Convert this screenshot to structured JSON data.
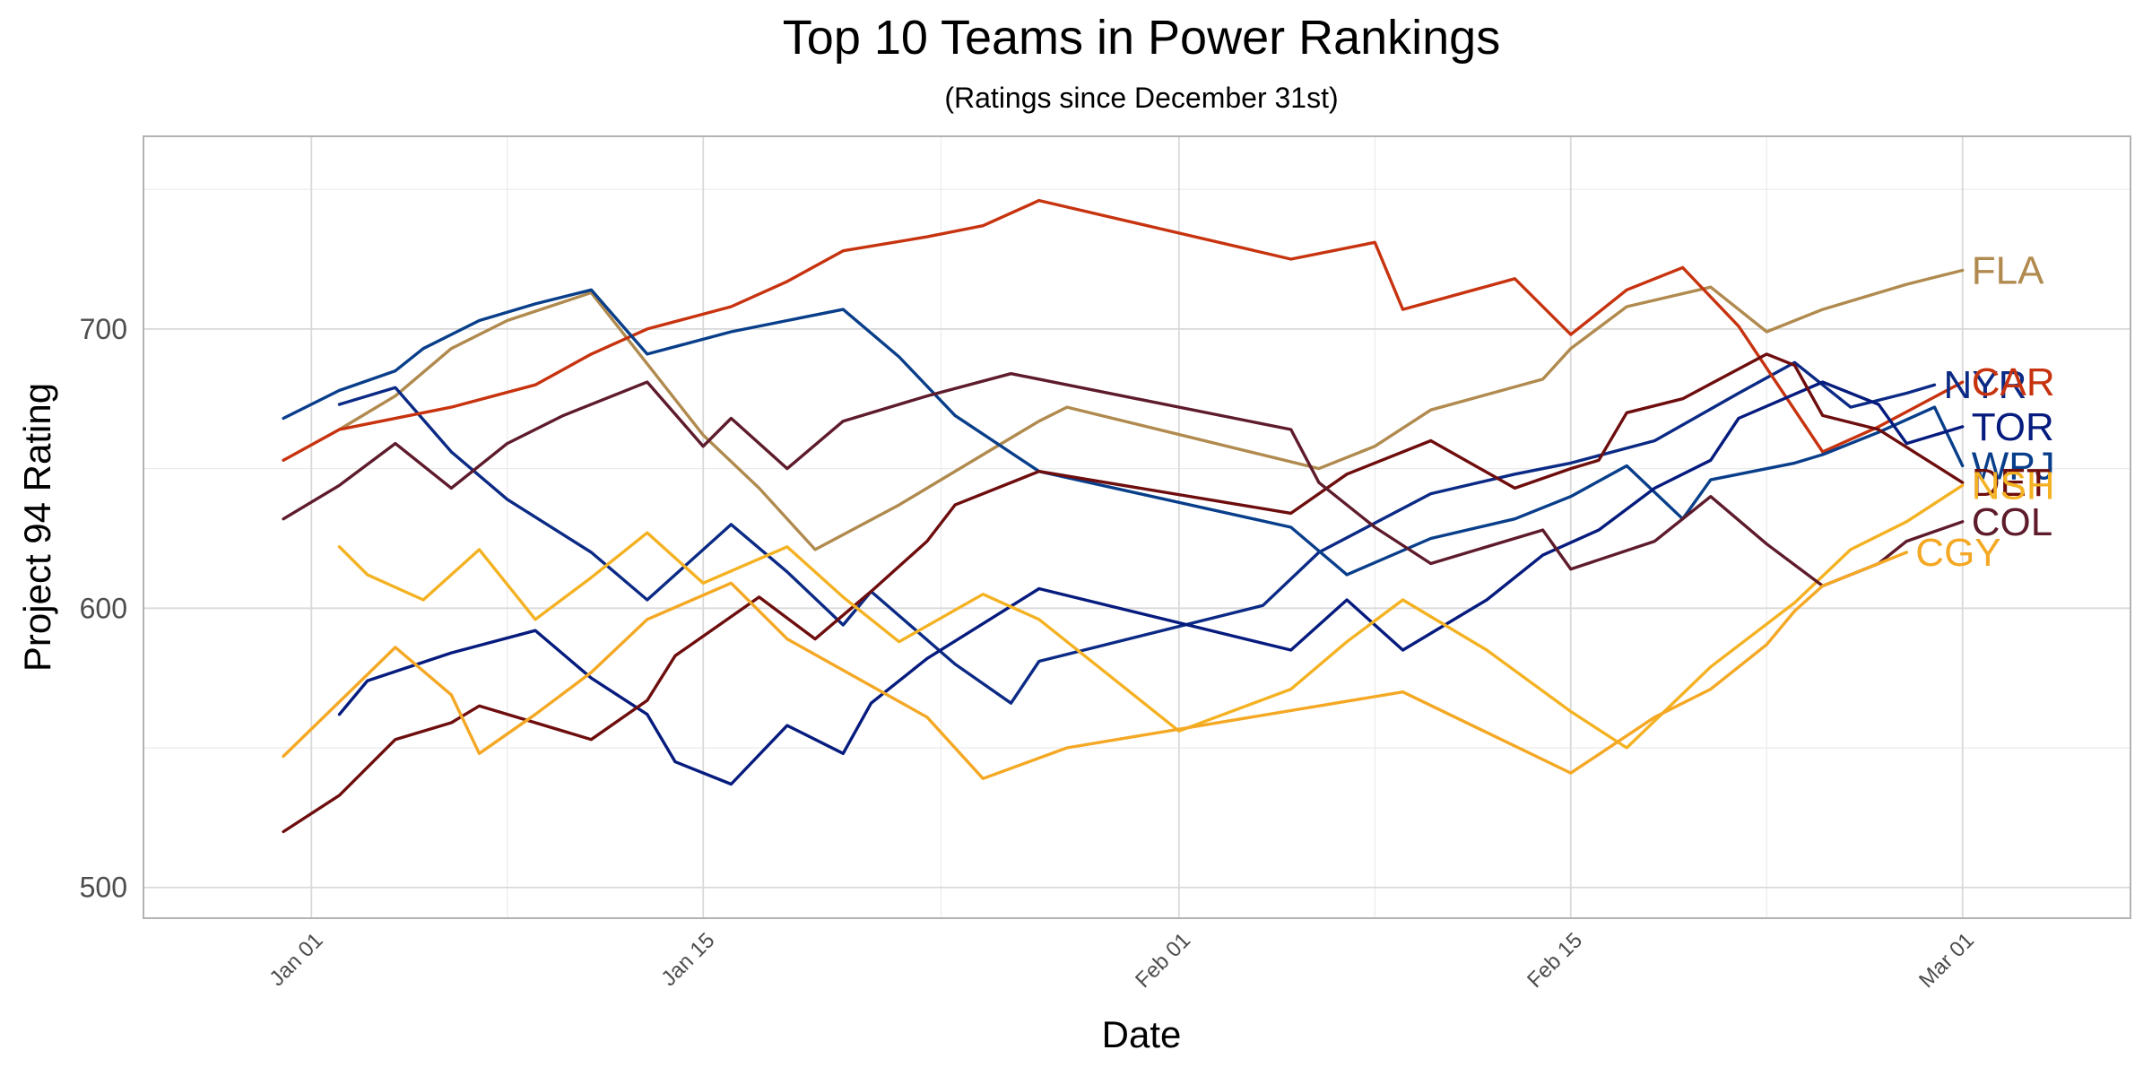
{
  "chart_data": {
    "type": "line",
    "title": "Top 10 Teams in Power Rankings",
    "subtitle": "(Ratings since December 31st)",
    "xlabel": "Date",
    "ylabel": "Project 94 Rating",
    "xlim": [
      "2021-12-26",
      "2022-03-07"
    ],
    "ylim": [
      489,
      769
    ],
    "x_tick_labels": [
      {
        "date": "2022-01-01",
        "label": "Jan 01"
      },
      {
        "date": "2022-01-15",
        "label": "Jan 15"
      },
      {
        "date": "2022-02-01",
        "label": "Feb 01"
      },
      {
        "date": "2022-02-15",
        "label": "Feb 15"
      },
      {
        "date": "2022-03-01",
        "label": "Mar 01"
      }
    ],
    "y_ticks": [
      500,
      600,
      700
    ],
    "grid": true,
    "legend": "direct labels at line ends",
    "series": [
      {
        "name": "FLA",
        "color": "#B08A4E",
        "points": [
          [
            "2022-01-02",
            664
          ],
          [
            "2022-01-04",
            676
          ],
          [
            "2022-01-06",
            693
          ],
          [
            "2022-01-08",
            703
          ],
          [
            "2022-01-11",
            713
          ],
          [
            "2022-01-15",
            662
          ],
          [
            "2022-01-17",
            643
          ],
          [
            "2022-01-19",
            621
          ],
          [
            "2022-01-22",
            637
          ],
          [
            "2022-01-25",
            655
          ],
          [
            "2022-01-27",
            667
          ],
          [
            "2022-01-28",
            672
          ],
          [
            "2022-02-06",
            650
          ],
          [
            "2022-02-08",
            658
          ],
          [
            "2022-02-10",
            671
          ],
          [
            "2022-02-14",
            682
          ],
          [
            "2022-02-15",
            693
          ],
          [
            "2022-02-17",
            708
          ],
          [
            "2022-02-20",
            715
          ],
          [
            "2022-02-22",
            699
          ],
          [
            "2022-02-24",
            707
          ],
          [
            "2022-02-27",
            716
          ],
          [
            "2022-02-29",
            721
          ]
        ]
      },
      {
        "name": "NYR",
        "color": "#0B2A85",
        "points": [
          [
            "2022-01-02",
            673
          ],
          [
            "2022-01-04",
            679
          ],
          [
            "2022-01-06",
            656
          ],
          [
            "2022-01-08",
            639
          ],
          [
            "2022-01-11",
            620
          ],
          [
            "2022-01-13",
            603
          ],
          [
            "2022-01-16",
            630
          ],
          [
            "2022-01-18",
            613
          ],
          [
            "2022-01-20",
            594
          ],
          [
            "2022-01-21",
            606
          ],
          [
            "2022-01-24",
            580
          ],
          [
            "2022-01-26",
            566
          ],
          [
            "2022-01-27",
            581
          ],
          [
            "2022-02-04",
            601
          ],
          [
            "2022-02-06",
            620
          ],
          [
            "2022-02-10",
            641
          ],
          [
            "2022-02-13",
            648
          ],
          [
            "2022-02-15",
            652
          ],
          [
            "2022-02-18",
            660
          ],
          [
            "2022-02-21",
            677
          ],
          [
            "2022-02-23",
            688
          ],
          [
            "2022-02-25",
            672
          ],
          [
            "2022-02-27",
            677
          ],
          [
            "2022-02-28",
            680
          ]
        ]
      },
      {
        "name": "CAR",
        "color": "#C7330F",
        "points": [
          [
            "2021-12-31",
            653
          ],
          [
            "2022-01-02",
            664
          ],
          [
            "2022-01-06",
            672
          ],
          [
            "2022-01-09",
            680
          ],
          [
            "2022-01-11",
            691
          ],
          [
            "2022-01-13",
            700
          ],
          [
            "2022-01-16",
            708
          ],
          [
            "2022-01-18",
            717
          ],
          [
            "2022-01-20",
            728
          ],
          [
            "2022-01-23",
            733
          ],
          [
            "2022-01-25",
            737
          ],
          [
            "2022-01-27",
            746
          ],
          [
            "2022-02-05",
            725
          ],
          [
            "2022-02-08",
            731
          ],
          [
            "2022-02-09",
            707
          ],
          [
            "2022-02-13",
            718
          ],
          [
            "2022-02-15",
            698
          ],
          [
            "2022-02-17",
            714
          ],
          [
            "2022-02-19",
            722
          ],
          [
            "2022-02-21",
            701
          ],
          [
            "2022-02-24",
            656
          ],
          [
            "2022-02-26",
            665
          ],
          [
            "2022-02-29",
            681
          ]
        ]
      },
      {
        "name": "WPJ",
        "color": "#083E8A",
        "points": [
          [
            "2021-12-31",
            668
          ],
          [
            "2022-01-02",
            678
          ],
          [
            "2022-01-04",
            685
          ],
          [
            "2022-01-05",
            693
          ],
          [
            "2022-01-07",
            703
          ],
          [
            "2022-01-09",
            709
          ],
          [
            "2022-01-11",
            714
          ],
          [
            "2022-01-13",
            691
          ],
          [
            "2022-01-16",
            699
          ],
          [
            "2022-01-18",
            703
          ],
          [
            "2022-01-20",
            707
          ],
          [
            "2022-01-22",
            690
          ],
          [
            "2022-01-24",
            669
          ],
          [
            "2022-01-27",
            649
          ],
          [
            "2022-02-05",
            629
          ],
          [
            "2022-02-07",
            612
          ],
          [
            "2022-02-10",
            625
          ],
          [
            "2022-02-13",
            632
          ],
          [
            "2022-02-15",
            640
          ],
          [
            "2022-02-17",
            651
          ],
          [
            "2022-02-19",
            632
          ],
          [
            "2022-02-20",
            646
          ],
          [
            "2022-02-23",
            652
          ],
          [
            "2022-02-24",
            655
          ],
          [
            "2022-02-26",
            663
          ],
          [
            "2022-02-28",
            672
          ],
          [
            "2022-02-29",
            651
          ]
        ]
      },
      {
        "name": "TOR",
        "color": "#061B7E",
        "points": [
          [
            "2022-01-02",
            562
          ],
          [
            "2022-01-03",
            574
          ],
          [
            "2022-01-06",
            584
          ],
          [
            "2022-01-09",
            592
          ],
          [
            "2022-01-11",
            575
          ],
          [
            "2022-01-13",
            562
          ],
          [
            "2022-01-14",
            545
          ],
          [
            "2022-01-16",
            537
          ],
          [
            "2022-01-18",
            558
          ],
          [
            "2022-01-20",
            548
          ],
          [
            "2022-01-21",
            566
          ],
          [
            "2022-01-23",
            582
          ],
          [
            "2022-01-27",
            607
          ],
          [
            "2022-02-05",
            585
          ],
          [
            "2022-02-07",
            603
          ],
          [
            "2022-02-09",
            585
          ],
          [
            "2022-02-12",
            603
          ],
          [
            "2022-02-14",
            619
          ],
          [
            "2022-02-16",
            628
          ],
          [
            "2022-02-18",
            643
          ],
          [
            "2022-02-20",
            653
          ],
          [
            "2022-02-21",
            668
          ],
          [
            "2022-02-24",
            681
          ],
          [
            "2022-02-26",
            673
          ],
          [
            "2022-02-27",
            659
          ],
          [
            "2022-02-29",
            665
          ]
        ]
      },
      {
        "name": "DET",
        "color": "#6E0D0D",
        "points": [
          [
            "2021-12-31",
            520
          ],
          [
            "2022-01-02",
            533
          ],
          [
            "2022-01-04",
            553
          ],
          [
            "2022-01-06",
            559
          ],
          [
            "2022-01-07",
            565
          ],
          [
            "2022-01-11",
            553
          ],
          [
            "2022-01-13",
            567
          ],
          [
            "2022-01-14",
            583
          ],
          [
            "2022-01-17",
            604
          ],
          [
            "2022-01-19",
            589
          ],
          [
            "2022-01-21",
            606
          ],
          [
            "2022-01-23",
            624
          ],
          [
            "2022-01-24",
            637
          ],
          [
            "2022-01-27",
            649
          ],
          [
            "2022-02-05",
            634
          ],
          [
            "2022-02-07",
            648
          ],
          [
            "2022-02-10",
            660
          ],
          [
            "2022-02-13",
            643
          ],
          [
            "2022-02-15",
            650
          ],
          [
            "2022-02-16",
            653
          ],
          [
            "2022-02-17",
            670
          ],
          [
            "2022-02-19",
            675
          ],
          [
            "2022-02-22",
            691
          ],
          [
            "2022-02-23",
            687
          ],
          [
            "2022-02-24",
            669
          ],
          [
            "2022-02-26",
            664
          ],
          [
            "2022-02-29",
            645
          ]
        ]
      },
      {
        "name": "NSH",
        "color": "#F4B223",
        "points": [
          [
            "2022-01-02",
            622
          ],
          [
            "2022-01-03",
            612
          ],
          [
            "2022-01-05",
            603
          ],
          [
            "2022-01-07",
            621
          ],
          [
            "2022-01-09",
            596
          ],
          [
            "2022-01-11",
            611
          ],
          [
            "2022-01-13",
            627
          ],
          [
            "2022-01-15",
            609
          ],
          [
            "2022-01-18",
            622
          ],
          [
            "2022-01-20",
            604
          ],
          [
            "2022-01-22",
            588
          ],
          [
            "2022-01-25",
            605
          ],
          [
            "2022-01-27",
            596
          ],
          [
            "2022-02-01",
            556
          ],
          [
            "2022-02-05",
            571
          ],
          [
            "2022-02-07",
            588
          ],
          [
            "2022-02-09",
            603
          ],
          [
            "2022-02-12",
            585
          ],
          [
            "2022-02-15",
            563
          ],
          [
            "2022-02-17",
            550
          ],
          [
            "2022-02-20",
            579
          ],
          [
            "2022-02-23",
            602
          ],
          [
            "2022-02-25",
            621
          ],
          [
            "2022-02-27",
            631
          ],
          [
            "2022-02-29",
            644
          ]
        ]
      },
      {
        "name": "COL",
        "color": "#5E1B2B",
        "points": [
          [
            "2021-12-31",
            632
          ],
          [
            "2022-01-02",
            644
          ],
          [
            "2022-01-04",
            659
          ],
          [
            "2022-01-06",
            643
          ],
          [
            "2022-01-08",
            659
          ],
          [
            "2022-01-10",
            669
          ],
          [
            "2022-01-13",
            681
          ],
          [
            "2022-01-15",
            658
          ],
          [
            "2022-01-16",
            668
          ],
          [
            "2022-01-18",
            650
          ],
          [
            "2022-01-20",
            667
          ],
          [
            "2022-01-23",
            676
          ],
          [
            "2022-01-26",
            684
          ],
          [
            "2022-02-05",
            664
          ],
          [
            "2022-02-06",
            645
          ],
          [
            "2022-02-08",
            629
          ],
          [
            "2022-02-10",
            616
          ],
          [
            "2022-02-14",
            628
          ],
          [
            "2022-02-15",
            614
          ],
          [
            "2022-02-18",
            624
          ],
          [
            "2022-02-20",
            640
          ],
          [
            "2022-02-22",
            623
          ],
          [
            "2022-02-24",
            608
          ],
          [
            "2022-02-26",
            616
          ],
          [
            "2022-02-27",
            624
          ],
          [
            "2022-02-29",
            631
          ]
        ]
      },
      {
        "name": "CGY",
        "color": "#F4A824",
        "points": [
          [
            "2021-12-31",
            547
          ],
          [
            "2022-01-04",
            586
          ],
          [
            "2022-01-06",
            569
          ],
          [
            "2022-01-07",
            548
          ],
          [
            "2022-01-09",
            562
          ],
          [
            "2022-01-11",
            577
          ],
          [
            "2022-01-13",
            596
          ],
          [
            "2022-01-16",
            609
          ],
          [
            "2022-01-18",
            589
          ],
          [
            "2022-01-23",
            561
          ],
          [
            "2022-01-25",
            539
          ],
          [
            "2022-01-28",
            550
          ],
          [
            "2022-02-09",
            570
          ],
          [
            "2022-02-15",
            541
          ],
          [
            "2022-02-18",
            561
          ],
          [
            "2022-02-20",
            571
          ],
          [
            "2022-02-22",
            587
          ],
          [
            "2022-02-23",
            599
          ],
          [
            "2022-02-24",
            608
          ],
          [
            "2022-02-27",
            620
          ]
        ]
      }
    ]
  }
}
